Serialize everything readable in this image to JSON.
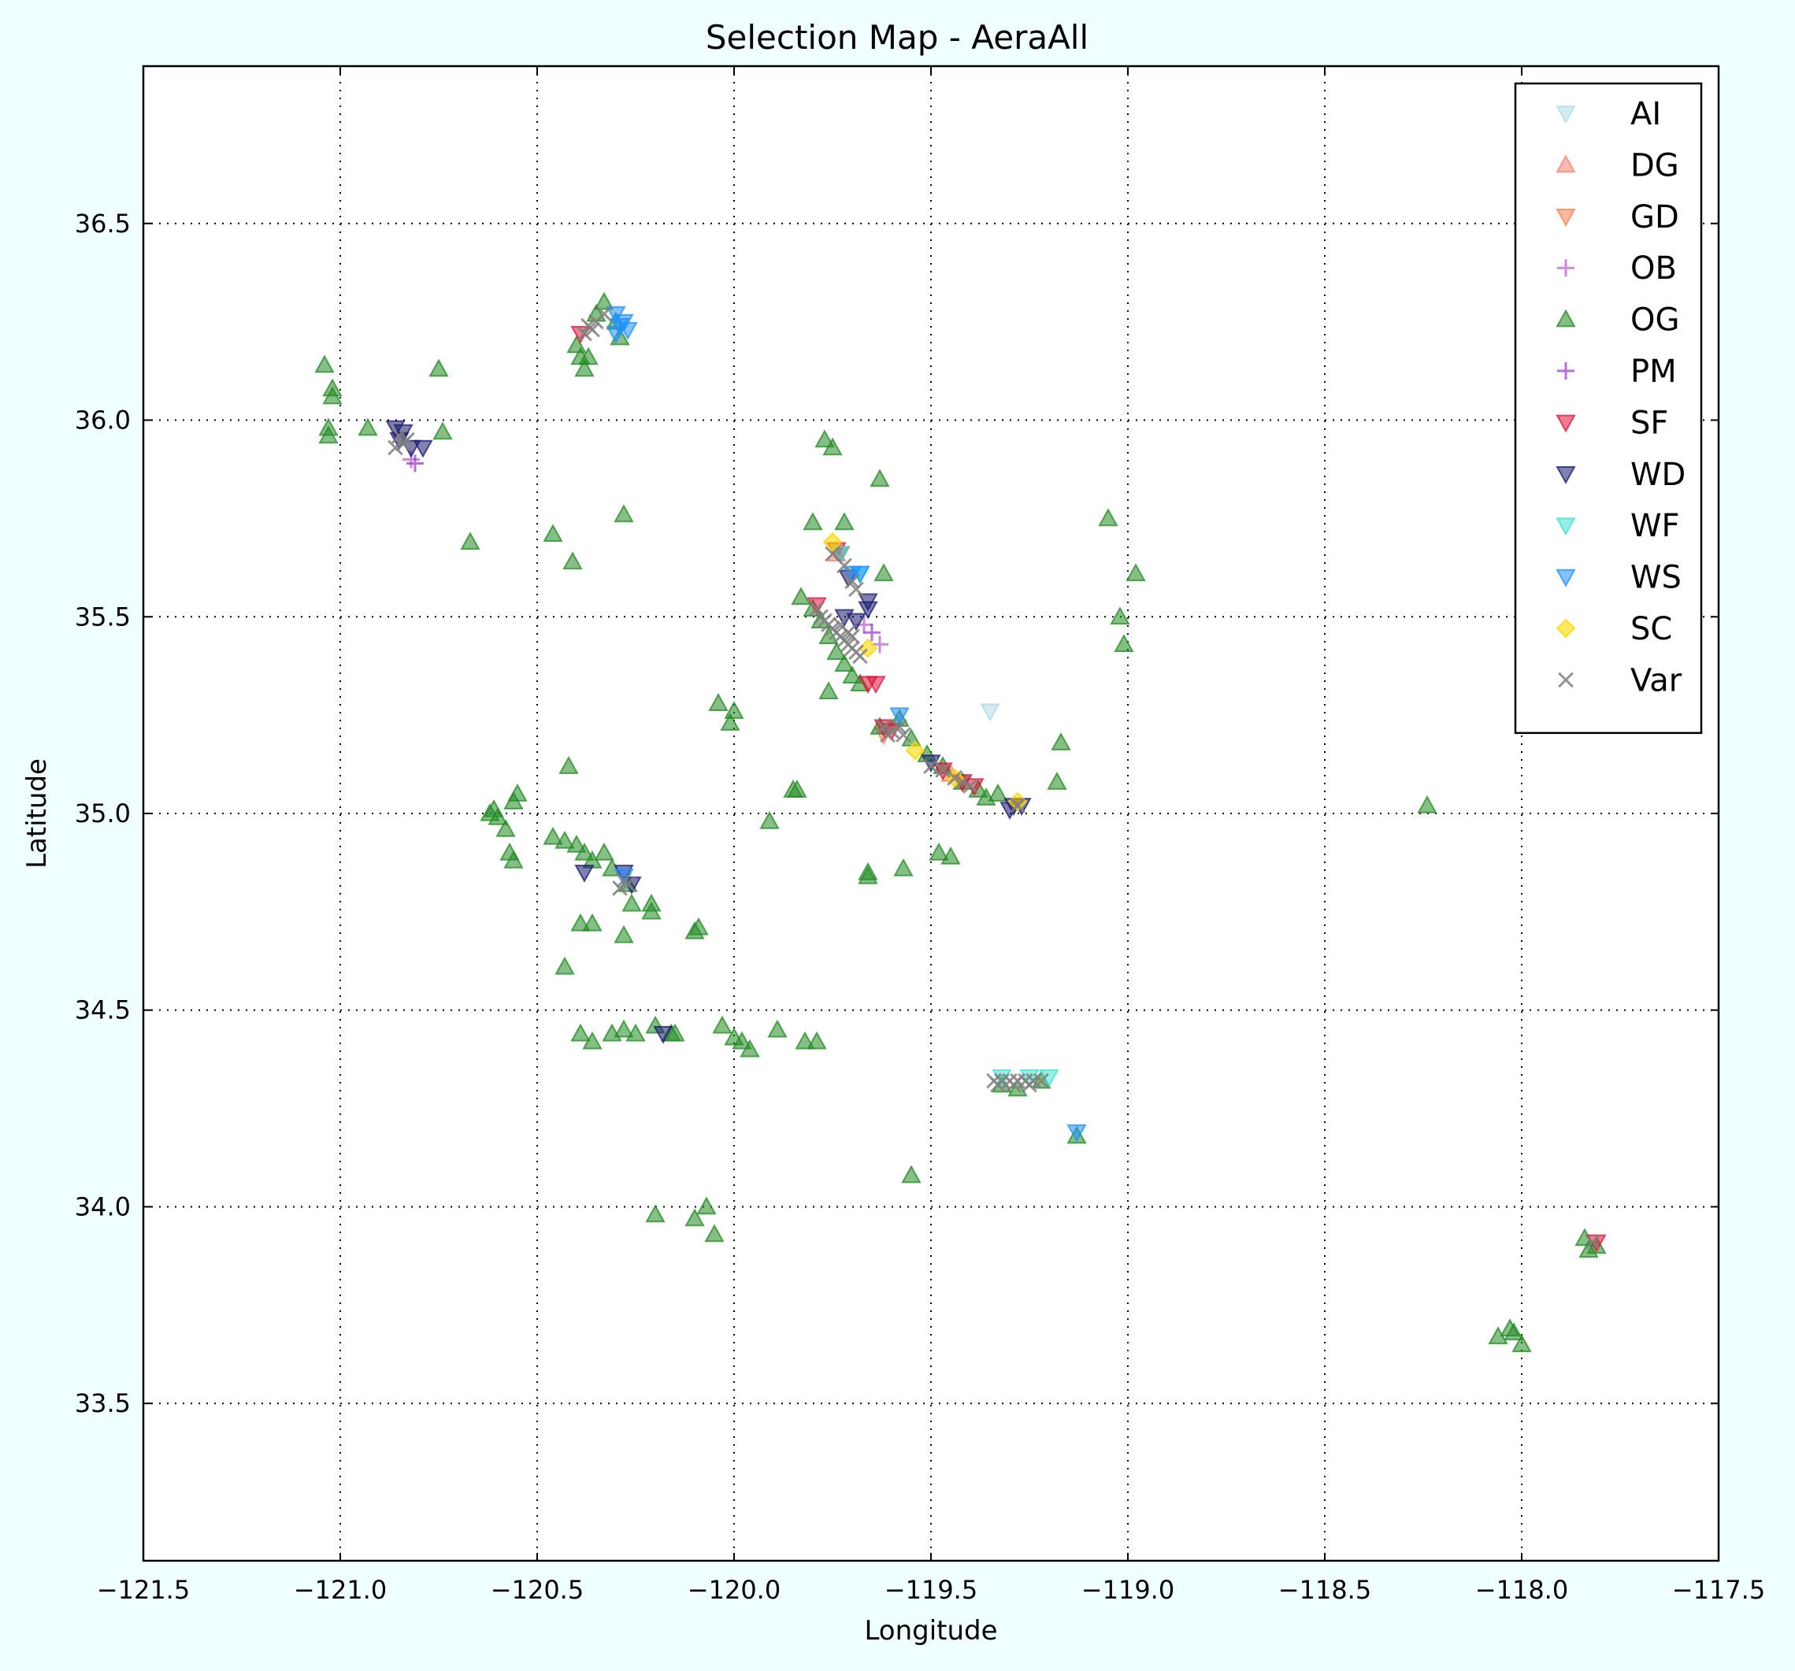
{
  "chart_data": {
    "type": "scatter",
    "title": "Selection Map - AeraAll",
    "xlabel": "Longitude",
    "ylabel": "Latitude",
    "xlim": [
      -121.5,
      -117.5
    ],
    "ylim": [
      33.1,
      36.9
    ],
    "xticks": [
      -121.5,
      -121.0,
      -120.5,
      -120.0,
      -119.5,
      -119.0,
      -118.5,
      -118.0,
      -117.5
    ],
    "xtick_labels": [
      "−121.5",
      "−121.0",
      "−120.5",
      "−120.0",
      "−119.5",
      "−119.0",
      "−118.5",
      "−118.0",
      "−117.5"
    ],
    "yticks": [
      33.5,
      34.0,
      34.5,
      35.0,
      35.5,
      36.0,
      36.5
    ],
    "ytick_labels": [
      "33.5",
      "34.0",
      "34.5",
      "35.0",
      "35.5",
      "36.0",
      "36.5"
    ],
    "grid": true,
    "legend_position": "top-right",
    "series": [
      {
        "name": "AI",
        "marker": "triangle-down",
        "color": "#add8e6",
        "points": [
          [
            -119.35,
            35.26
          ]
        ]
      },
      {
        "name": "DG",
        "marker": "triangle-up",
        "color": "#fa8072",
        "points": [
          [
            -119.74,
            35.66
          ],
          [
            -119.45,
            35.1
          ]
        ]
      },
      {
        "name": "GD",
        "marker": "triangle-down",
        "color": "#ff7f50",
        "points": [
          [
            -119.62,
            35.2
          ],
          [
            -119.42,
            35.08
          ]
        ]
      },
      {
        "name": "OB",
        "marker": "plus",
        "color": "#ba55d3",
        "points": [
          [
            -120.82,
            35.9
          ],
          [
            -119.63,
            35.43
          ],
          [
            -119.67,
            35.48
          ]
        ]
      },
      {
        "name": "OG",
        "marker": "triangle-up",
        "color": "#228b22",
        "points": [
          [
            -121.04,
            36.14
          ],
          [
            -121.02,
            36.08
          ],
          [
            -121.02,
            36.06
          ],
          [
            -121.03,
            35.98
          ],
          [
            -121.03,
            35.96
          ],
          [
            -120.93,
            35.98
          ],
          [
            -120.75,
            36.13
          ],
          [
            -120.74,
            35.97
          ],
          [
            -120.67,
            35.69
          ],
          [
            -120.46,
            35.71
          ],
          [
            -120.41,
            35.64
          ],
          [
            -120.28,
            35.76
          ],
          [
            -120.4,
            36.19
          ],
          [
            -120.38,
            36.13
          ],
          [
            -120.37,
            36.16
          ],
          [
            -120.35,
            36.27
          ],
          [
            -120.33,
            36.3
          ],
          [
            -120.3,
            36.25
          ],
          [
            -120.29,
            36.21
          ],
          [
            -120.39,
            36.16
          ],
          [
            -119.77,
            35.95
          ],
          [
            -119.75,
            35.93
          ],
          [
            -119.63,
            35.85
          ],
          [
            -119.72,
            35.74
          ],
          [
            -119.8,
            35.74
          ],
          [
            -119.62,
            35.61
          ],
          [
            -119.05,
            35.75
          ],
          [
            -118.98,
            35.61
          ],
          [
            -119.02,
            35.5
          ],
          [
            -119.01,
            35.43
          ],
          [
            -119.83,
            35.55
          ],
          [
            -119.8,
            35.52
          ],
          [
            -119.78,
            35.49
          ],
          [
            -119.76,
            35.45
          ],
          [
            -119.74,
            35.41
          ],
          [
            -119.72,
            35.38
          ],
          [
            -119.7,
            35.35
          ],
          [
            -119.76,
            35.31
          ],
          [
            -119.68,
            35.33
          ],
          [
            -119.63,
            35.22
          ],
          [
            -119.58,
            35.24
          ],
          [
            -119.55,
            35.19
          ],
          [
            -119.51,
            35.15
          ],
          [
            -119.47,
            35.12
          ],
          [
            -119.42,
            35.08
          ],
          [
            -119.38,
            35.06
          ],
          [
            -119.36,
            35.04
          ],
          [
            -119.33,
            35.05
          ],
          [
            -120.04,
            35.28
          ],
          [
            -120.0,
            35.26
          ],
          [
            -120.01,
            35.23
          ],
          [
            -120.42,
            35.12
          ],
          [
            -119.85,
            35.06
          ],
          [
            -119.84,
            35.06
          ],
          [
            -119.91,
            34.98
          ],
          [
            -119.17,
            35.18
          ],
          [
            -119.18,
            35.08
          ],
          [
            -118.24,
            35.02
          ],
          [
            -120.62,
            35.0
          ],
          [
            -120.61,
            35.01
          ],
          [
            -120.6,
            34.99
          ],
          [
            -120.58,
            34.96
          ],
          [
            -120.57,
            34.9
          ],
          [
            -120.56,
            34.88
          ],
          [
            -120.55,
            35.05
          ],
          [
            -120.56,
            35.03
          ],
          [
            -120.46,
            34.94
          ],
          [
            -120.43,
            34.93
          ],
          [
            -120.4,
            34.92
          ],
          [
            -120.38,
            34.9
          ],
          [
            -120.36,
            34.88
          ],
          [
            -120.33,
            34.9
          ],
          [
            -120.31,
            34.86
          ],
          [
            -120.27,
            34.82
          ],
          [
            -120.26,
            34.77
          ],
          [
            -120.21,
            34.77
          ],
          [
            -120.21,
            34.75
          ],
          [
            -120.39,
            34.72
          ],
          [
            -120.36,
            34.72
          ],
          [
            -120.28,
            34.69
          ],
          [
            -120.09,
            34.71
          ],
          [
            -120.1,
            34.7
          ],
          [
            -120.43,
            34.61
          ],
          [
            -119.66,
            34.85
          ],
          [
            -119.66,
            34.84
          ],
          [
            -119.57,
            34.86
          ],
          [
            -119.48,
            34.9
          ],
          [
            -119.45,
            34.89
          ],
          [
            -120.39,
            34.44
          ],
          [
            -120.36,
            34.42
          ],
          [
            -120.31,
            34.44
          ],
          [
            -120.28,
            34.45
          ],
          [
            -120.25,
            34.44
          ],
          [
            -120.2,
            34.46
          ],
          [
            -120.16,
            34.44
          ],
          [
            -120.15,
            34.44
          ],
          [
            -120.03,
            34.46
          ],
          [
            -120.0,
            34.43
          ],
          [
            -119.98,
            34.42
          ],
          [
            -119.96,
            34.4
          ],
          [
            -119.89,
            34.45
          ],
          [
            -119.82,
            34.42
          ],
          [
            -119.79,
            34.42
          ],
          [
            -119.32,
            34.31
          ],
          [
            -119.28,
            34.3
          ],
          [
            -119.22,
            34.32
          ],
          [
            -119.13,
            34.18
          ],
          [
            -119.55,
            34.08
          ],
          [
            -120.2,
            33.98
          ],
          [
            -120.1,
            33.97
          ],
          [
            -120.07,
            34.0
          ],
          [
            -120.05,
            33.93
          ],
          [
            -117.84,
            33.92
          ],
          [
            -117.81,
            33.9
          ],
          [
            -117.83,
            33.89
          ],
          [
            -118.06,
            33.67
          ],
          [
            -118.03,
            33.69
          ],
          [
            -118.02,
            33.68
          ],
          [
            -118.0,
            33.65
          ]
        ]
      },
      {
        "name": "PM",
        "marker": "plus",
        "color": "#9932cc",
        "points": [
          [
            -120.81,
            35.89
          ],
          [
            -119.65,
            35.46
          ]
        ]
      },
      {
        "name": "SF",
        "marker": "triangle-down",
        "color": "#dc143c",
        "points": [
          [
            -120.39,
            36.22
          ],
          [
            -119.74,
            35.67
          ],
          [
            -119.73,
            35.66
          ],
          [
            -119.79,
            35.53
          ],
          [
            -119.66,
            35.33
          ],
          [
            -119.64,
            35.33
          ],
          [
            -119.62,
            35.22
          ],
          [
            -119.6,
            35.21
          ],
          [
            -119.47,
            35.11
          ],
          [
            -119.42,
            35.08
          ],
          [
            -119.39,
            35.07
          ],
          [
            -117.81,
            33.91
          ]
        ]
      },
      {
        "name": "WD",
        "marker": "triangle-down",
        "color": "#191970",
        "points": [
          [
            -120.86,
            35.98
          ],
          [
            -120.84,
            35.97
          ],
          [
            -120.82,
            35.93
          ],
          [
            -120.79,
            35.93
          ],
          [
            -120.85,
            35.95
          ],
          [
            -119.66,
            35.54
          ],
          [
            -119.66,
            35.52
          ],
          [
            -119.72,
            35.5
          ],
          [
            -119.69,
            35.49
          ],
          [
            -119.71,
            35.6
          ],
          [
            -120.38,
            34.85
          ],
          [
            -120.28,
            34.85
          ],
          [
            -120.26,
            34.82
          ],
          [
            -120.18,
            34.44
          ],
          [
            -119.5,
            35.13
          ],
          [
            -119.27,
            35.02
          ],
          [
            -119.29,
            35.02
          ],
          [
            -119.3,
            35.01
          ]
        ]
      },
      {
        "name": "WF",
        "marker": "triangle-down",
        "color": "#40e0d0",
        "points": [
          [
            -119.73,
            35.66
          ],
          [
            -119.68,
            35.61
          ],
          [
            -119.32,
            34.33
          ],
          [
            -119.25,
            34.33
          ],
          [
            -119.2,
            34.33
          ]
        ]
      },
      {
        "name": "WS",
        "marker": "triangle-down",
        "color": "#1e90ff",
        "points": [
          [
            -120.3,
            36.27
          ],
          [
            -120.29,
            36.24
          ],
          [
            -120.3,
            36.22
          ],
          [
            -120.28,
            36.25
          ],
          [
            -120.27,
            36.23
          ],
          [
            -119.7,
            35.61
          ],
          [
            -119.68,
            35.61
          ],
          [
            -120.28,
            34.84
          ],
          [
            -119.58,
            35.25
          ],
          [
            -119.13,
            34.19
          ]
        ]
      },
      {
        "name": "SC",
        "marker": "diamond",
        "color": "#ffd700",
        "points": [
          [
            -119.75,
            35.69
          ],
          [
            -119.66,
            35.42
          ],
          [
            -119.54,
            35.16
          ],
          [
            -119.44,
            35.09
          ],
          [
            -119.28,
            35.03
          ]
        ]
      },
      {
        "name": "Var",
        "marker": "x",
        "color": "#808080",
        "points": [
          [
            -120.85,
            35.96
          ],
          [
            -120.84,
            35.94
          ],
          [
            -120.83,
            35.95
          ],
          [
            -120.86,
            35.93
          ],
          [
            -120.37,
            36.24
          ],
          [
            -120.35,
            36.25
          ],
          [
            -120.33,
            36.27
          ],
          [
            -120.38,
            36.22
          ],
          [
            -120.36,
            36.23
          ],
          [
            -119.75,
            35.66
          ],
          [
            -119.72,
            35.63
          ],
          [
            -119.7,
            35.59
          ],
          [
            -119.69,
            35.57
          ],
          [
            -119.79,
            35.52
          ],
          [
            -119.78,
            35.5
          ],
          [
            -119.77,
            35.49
          ],
          [
            -119.76,
            35.48
          ],
          [
            -119.75,
            35.47
          ],
          [
            -119.74,
            35.46
          ],
          [
            -119.73,
            35.45
          ],
          [
            -119.72,
            35.44
          ],
          [
            -119.71,
            35.43
          ],
          [
            -119.7,
            35.42
          ],
          [
            -119.69,
            35.41
          ],
          [
            -119.68,
            35.4
          ],
          [
            -119.73,
            35.48
          ],
          [
            -119.71,
            35.46
          ],
          [
            -119.7,
            35.45
          ],
          [
            -119.62,
            35.22
          ],
          [
            -119.6,
            35.21
          ],
          [
            -119.58,
            35.22
          ],
          [
            -119.61,
            35.2
          ],
          [
            -119.57,
            35.2
          ],
          [
            -119.5,
            35.12
          ],
          [
            -119.47,
            35.11
          ],
          [
            -119.44,
            35.09
          ],
          [
            -119.42,
            35.08
          ],
          [
            -119.4,
            35.07
          ],
          [
            -119.28,
            35.02
          ],
          [
            -120.28,
            34.83
          ],
          [
            -120.27,
            34.82
          ],
          [
            -120.29,
            34.81
          ],
          [
            -119.34,
            34.32
          ],
          [
            -119.32,
            34.32
          ],
          [
            -119.3,
            34.32
          ],
          [
            -119.28,
            34.32
          ],
          [
            -119.26,
            34.32
          ],
          [
            -119.24,
            34.32
          ],
          [
            -119.22,
            34.32
          ],
          [
            -119.33,
            34.31
          ],
          [
            -119.29,
            34.31
          ],
          [
            -119.25,
            34.31
          ],
          [
            -117.82,
            33.91
          ]
        ]
      }
    ]
  }
}
